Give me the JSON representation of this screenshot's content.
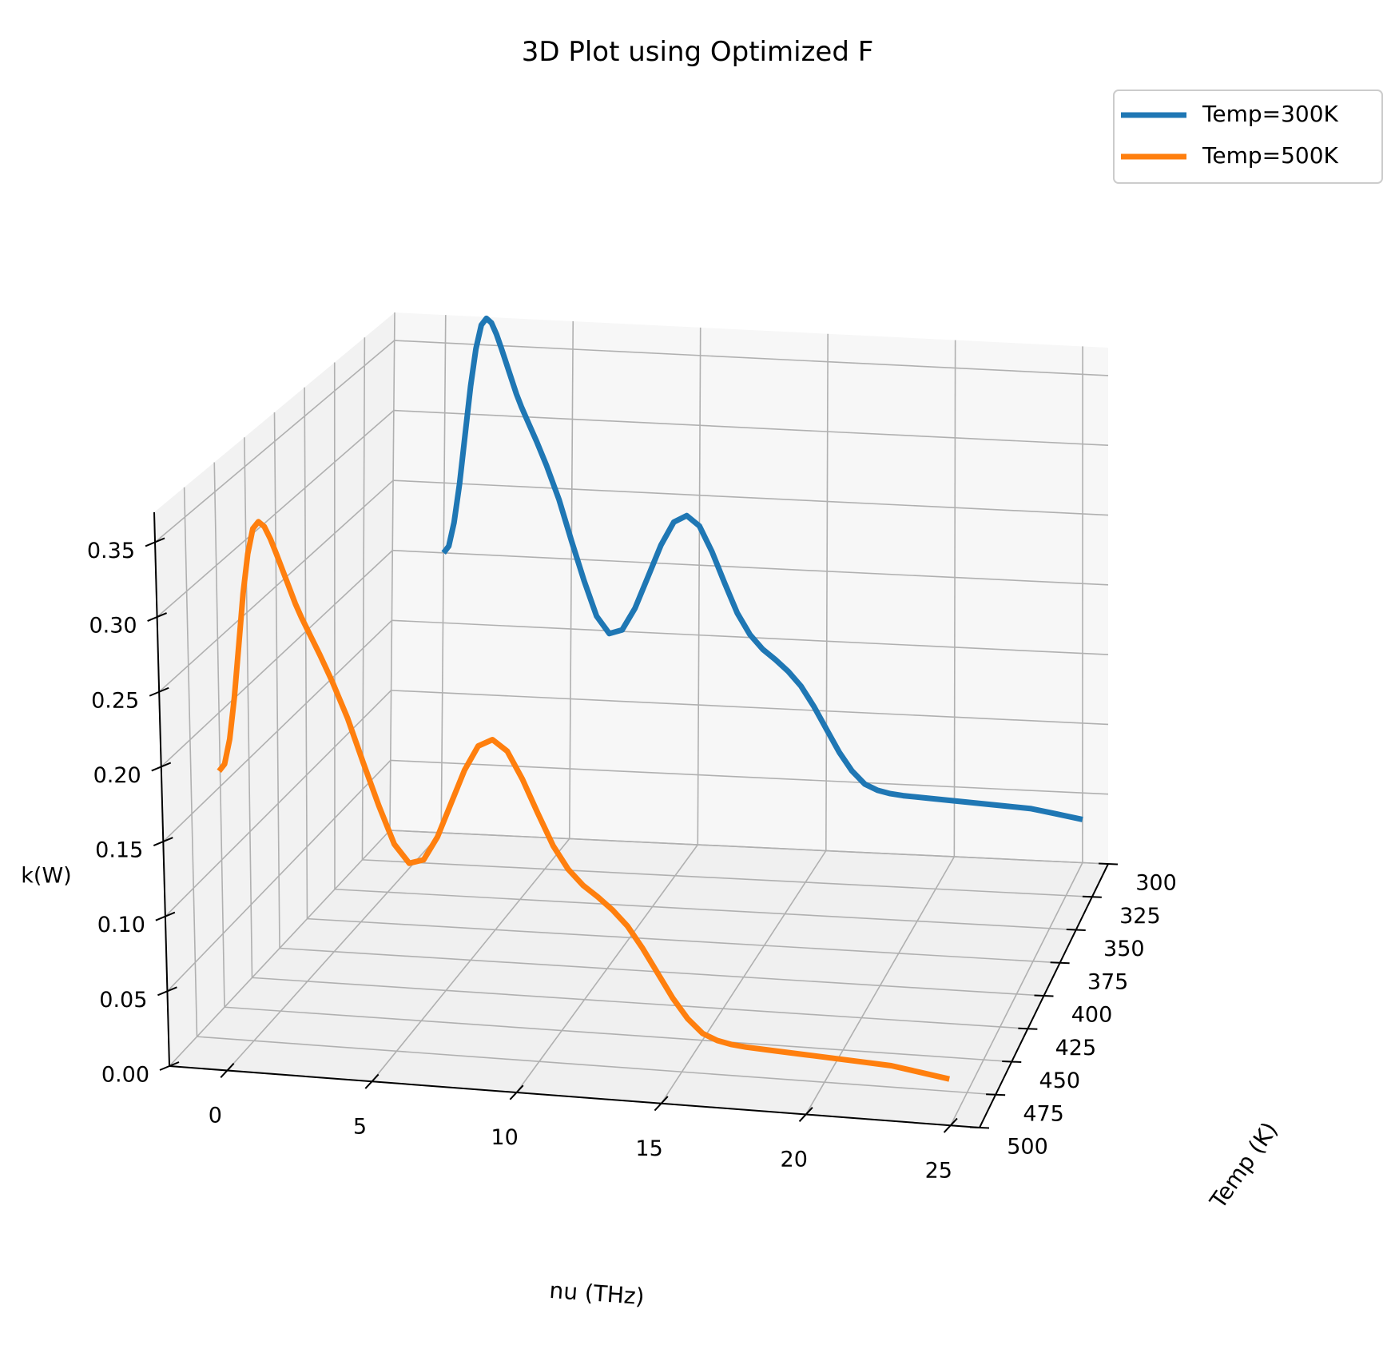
{
  "chart_data": {
    "type": "line",
    "title": "3D Plot using Optimized F",
    "xlabel": "nu (THz)",
    "ylabel": "Temp (K)",
    "zlabel": "k(W)",
    "xlim": [
      -2,
      26
    ],
    "ylim": [
      300,
      500
    ],
    "zlim": [
      0,
      0.37
    ],
    "x_ticks": [
      "0",
      "5",
      "10",
      "15",
      "20",
      "25"
    ],
    "y_ticks": [
      "300",
      "325",
      "350",
      "375",
      "400",
      "425",
      "450",
      "475",
      "500"
    ],
    "z_ticks": [
      "0.00",
      "0.05",
      "0.10",
      "0.15",
      "0.20",
      "0.25",
      "0.30",
      "0.35"
    ],
    "grid": true,
    "legend_position": "top-right",
    "series": [
      {
        "name": "Temp=300K",
        "color": "#1f77b4",
        "temp": 300,
        "x": [
          0,
          0.2,
          0.4,
          0.6,
          0.8,
          1,
          1.2,
          1.4,
          1.6,
          1.8,
          2,
          2.2,
          2.5,
          2.8,
          3,
          3.3,
          3.6,
          4,
          4.5,
          5,
          5.5,
          6,
          6.5,
          7,
          7.5,
          8,
          8.5,
          9,
          9.5,
          10,
          10.5,
          11,
          11.5,
          12,
          12.5,
          13,
          13.5,
          14,
          14.5,
          15,
          15.5,
          16,
          16.5,
          17,
          17.5,
          18,
          19,
          20,
          21,
          22,
          23,
          24,
          25
        ],
        "z": [
          0.2,
          0.205,
          0.222,
          0.25,
          0.285,
          0.32,
          0.347,
          0.364,
          0.369,
          0.366,
          0.358,
          0.348,
          0.332,
          0.316,
          0.307,
          0.295,
          0.283,
          0.266,
          0.242,
          0.213,
          0.185,
          0.16,
          0.148,
          0.151,
          0.167,
          0.19,
          0.213,
          0.23,
          0.235,
          0.228,
          0.21,
          0.188,
          0.167,
          0.152,
          0.142,
          0.135,
          0.127,
          0.117,
          0.103,
          0.087,
          0.071,
          0.058,
          0.049,
          0.045,
          0.043,
          0.042,
          0.041,
          0.04,
          0.039,
          0.038,
          0.037,
          0.034,
          0.031
        ]
      },
      {
        "name": "Temp=500K",
        "color": "#ff7f0e",
        "temp": 500,
        "x": [
          0,
          0.2,
          0.4,
          0.6,
          0.8,
          1,
          1.2,
          1.4,
          1.6,
          1.8,
          2,
          2.2,
          2.5,
          2.8,
          3,
          3.3,
          3.6,
          4,
          4.5,
          5,
          5.5,
          6,
          6.5,
          7,
          7.5,
          8,
          8.5,
          9,
          9.5,
          10,
          10.5,
          11,
          11.5,
          12,
          12.5,
          13,
          13.5,
          14,
          14.5,
          15,
          15.5,
          16,
          16.5,
          17,
          17.5,
          18,
          19,
          20,
          21,
          22,
          23,
          24,
          25
        ],
        "z": [
          0.2,
          0.205,
          0.222,
          0.25,
          0.285,
          0.32,
          0.347,
          0.364,
          0.369,
          0.366,
          0.358,
          0.348,
          0.332,
          0.316,
          0.307,
          0.295,
          0.283,
          0.266,
          0.242,
          0.213,
          0.185,
          0.16,
          0.148,
          0.151,
          0.167,
          0.19,
          0.213,
          0.23,
          0.235,
          0.228,
          0.21,
          0.188,
          0.167,
          0.152,
          0.142,
          0.135,
          0.127,
          0.117,
          0.103,
          0.087,
          0.071,
          0.058,
          0.049,
          0.045,
          0.043,
          0.042,
          0.041,
          0.04,
          0.039,
          0.038,
          0.037,
          0.034,
          0.031
        ]
      }
    ]
  }
}
